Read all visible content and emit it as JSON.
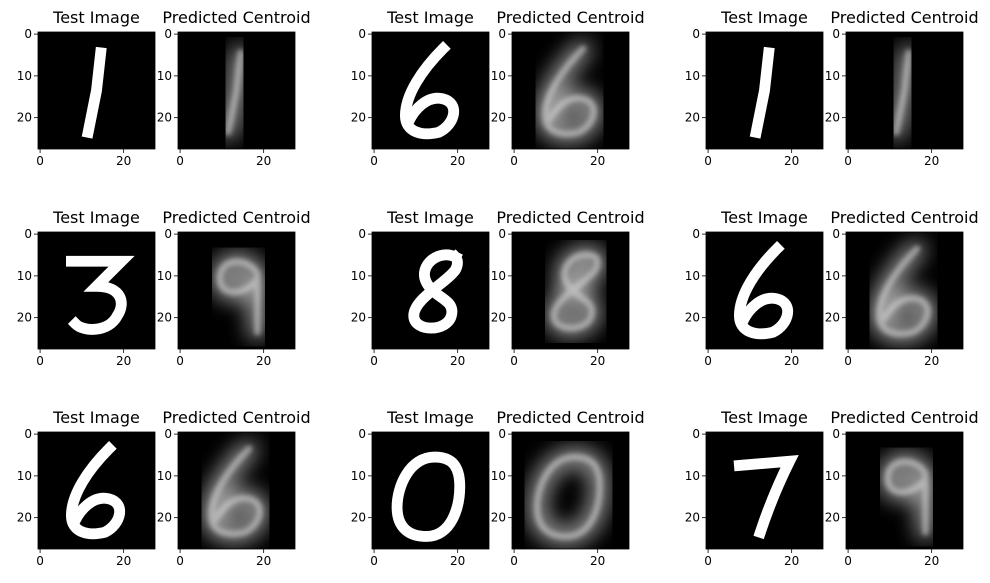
{
  "figure": {
    "subplot_titles": {
      "test": "Test Image",
      "centroid": "Predicted Centroid"
    },
    "x_tick_labels": [
      "0",
      "20"
    ],
    "y_tick_labels": [
      "0",
      "10",
      "20"
    ],
    "colormap": "gray",
    "background": "#000000"
  },
  "chart_data": {
    "type": "image-grid",
    "image_size": [
      28,
      28
    ],
    "x_ticks": [
      0,
      20
    ],
    "y_ticks": [
      0,
      10,
      20
    ],
    "panels": [
      {
        "row": 0,
        "col": 0,
        "test_digit": "1",
        "centroid_digit": "1"
      },
      {
        "row": 0,
        "col": 1,
        "test_digit": "6",
        "centroid_digit": "6"
      },
      {
        "row": 0,
        "col": 2,
        "test_digit": "1",
        "centroid_digit": "1"
      },
      {
        "row": 1,
        "col": 0,
        "test_digit": "3",
        "centroid_digit": "9"
      },
      {
        "row": 1,
        "col": 1,
        "test_digit": "8",
        "centroid_digit": "8"
      },
      {
        "row": 1,
        "col": 2,
        "test_digit": "6",
        "centroid_digit": "6"
      },
      {
        "row": 2,
        "col": 0,
        "test_digit": "6",
        "centroid_digit": "6"
      },
      {
        "row": 2,
        "col": 1,
        "test_digit": "0",
        "centroid_digit": "0"
      },
      {
        "row": 2,
        "col": 2,
        "test_digit": "7",
        "centroid_digit": "9"
      }
    ]
  }
}
